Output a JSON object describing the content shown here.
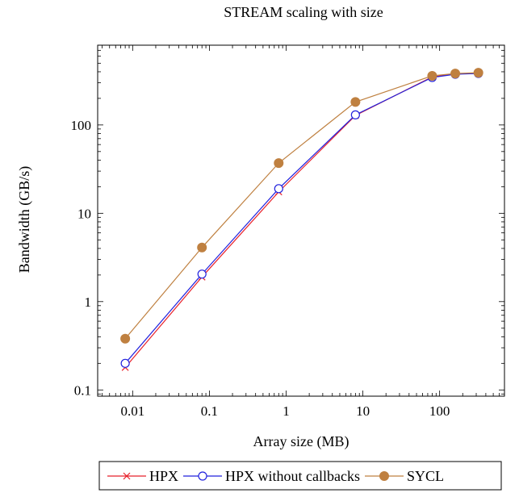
{
  "chart_data": {
    "type": "line",
    "title": "STREAM scaling with size",
    "xlabel": "Array size (MB)",
    "ylabel": "Bandwidth (GB/s)",
    "x_scale": "log",
    "y_scale": "log",
    "xlim": [
      0.0035,
      700
    ],
    "ylim": [
      0.085,
      800
    ],
    "x_ticks": [
      {
        "value": 0.01,
        "label": "0.01"
      },
      {
        "value": 0.1,
        "label": "0.1"
      },
      {
        "value": 1,
        "label": "1"
      },
      {
        "value": 10,
        "label": "10"
      },
      {
        "value": 100,
        "label": "100"
      }
    ],
    "y_ticks": [
      {
        "value": 0.1,
        "label": "0.1"
      },
      {
        "value": 1,
        "label": "1"
      },
      {
        "value": 10,
        "label": "10"
      },
      {
        "value": 100,
        "label": "100"
      }
    ],
    "grid": false,
    "legend_position": "bottom",
    "series": [
      {
        "name": "HPX",
        "color": "#e8202a",
        "marker": "x",
        "x": [
          0.008,
          0.08,
          0.8,
          8,
          80,
          160,
          320
        ],
        "y": [
          0.18,
          1.9,
          17.5,
          128,
          350,
          378,
          385
        ]
      },
      {
        "name": "HPX without callbacks",
        "color": "#2222dd",
        "marker": "circle-open",
        "x": [
          0.008,
          0.08,
          0.8,
          8,
          80,
          160,
          320
        ],
        "y": [
          0.2,
          2.05,
          19,
          130,
          345,
          375,
          383
        ]
      },
      {
        "name": "SYCL",
        "color": "#bf8040",
        "marker": "circle-filled",
        "x": [
          0.008,
          0.08,
          0.8,
          8,
          80,
          160,
          320
        ],
        "y": [
          0.38,
          4.1,
          37,
          182,
          360,
          382,
          390
        ]
      }
    ]
  }
}
